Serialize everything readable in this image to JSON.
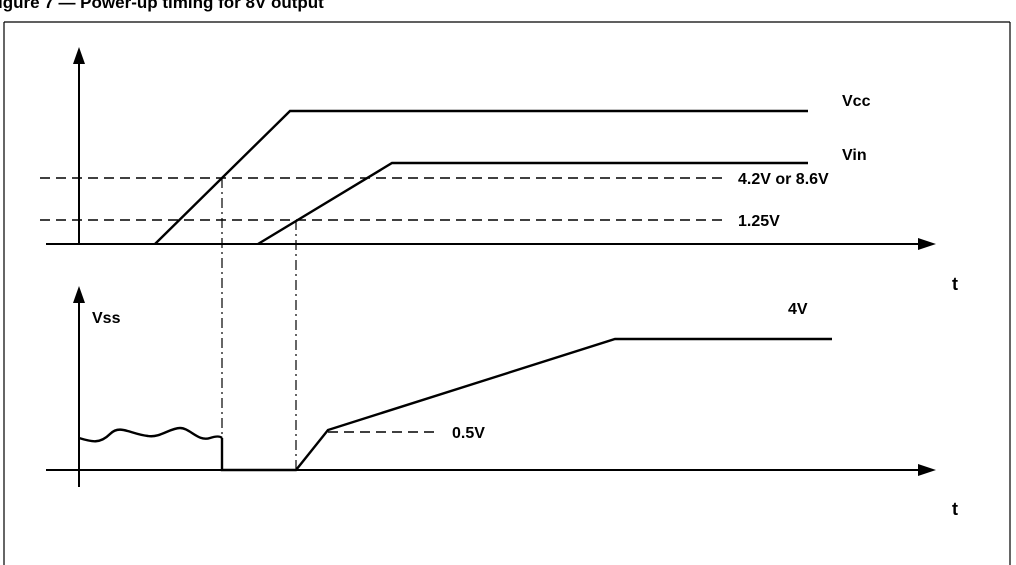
{
  "caption": "igure 7 — Power-up timing for 8V output",
  "labels": {
    "vcc": "Vcc",
    "vin": "Vin",
    "threshold_high": "4.2V or 8.6V",
    "threshold_low": "1.25V",
    "vss": "Vss",
    "vss_final": "4V",
    "vss_step": "0.5V",
    "time_axis_top": "t",
    "time_axis_bottom": "t"
  }
}
